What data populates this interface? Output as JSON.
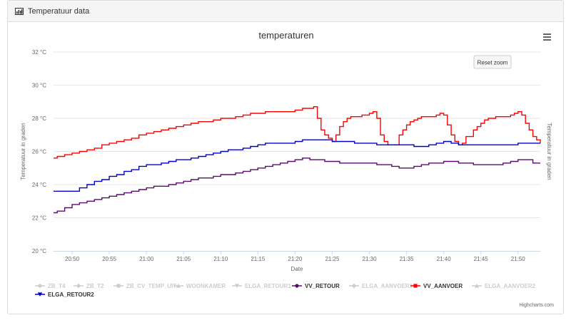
{
  "panel": {
    "title": "Temperatuur data",
    "icon": "bar-chart-icon"
  },
  "ui": {
    "reset_zoom": "Reset zoom",
    "credits": "Highcharts.com",
    "menu_icon": "hamburger-menu-icon"
  },
  "chart_data": {
    "type": "line",
    "title": "temperaturen",
    "xlabel": "Date",
    "ylabel": "Temperatuur in graden",
    "ylabel_right": "Temperatuur in graden",
    "y_ticks": [
      "20 °C",
      "22 °C",
      "24 °C",
      "26 °C",
      "28 °C",
      "30 °C",
      "32 °C"
    ],
    "y_tick_values": [
      20,
      22,
      24,
      26,
      28,
      30,
      32
    ],
    "ylim": [
      20,
      32
    ],
    "x_ticks": [
      "20:50",
      "20:55",
      "21:00",
      "21:05",
      "21:10",
      "21:15",
      "21:20",
      "21:25",
      "21:30",
      "21:35",
      "21:40",
      "21:45",
      "21:50"
    ],
    "x_tick_minutes": [
      50,
      55,
      60,
      65,
      70,
      75,
      80,
      85,
      90,
      95,
      100,
      105,
      110
    ],
    "xlim_minutes": [
      47.5,
      113
    ],
    "grid": true,
    "legend_position": "bottom-left",
    "legend": [
      {
        "name": "ZB_T4",
        "active": false,
        "symbol": "circle"
      },
      {
        "name": "ZB_T2",
        "active": false,
        "symbol": "diamond"
      },
      {
        "name": "ZB_CV_TEMP_UIT",
        "active": false,
        "symbol": "square"
      },
      {
        "name": "WOONKAMER",
        "active": false,
        "symbol": "triangle"
      },
      {
        "name": "ELGA_RETOUR1",
        "active": false,
        "symbol": "triangle-down"
      },
      {
        "name": "VV_RETOUR",
        "active": true,
        "symbol": "circle",
        "color": "#5b0a6e"
      },
      {
        "name": "ELGA_AANVOER1",
        "active": false,
        "symbol": "diamond"
      },
      {
        "name": "VV_AANVOER",
        "active": true,
        "symbol": "square",
        "color": "#ff0000"
      },
      {
        "name": "ELGA_AANVOER2",
        "active": false,
        "symbol": "triangle"
      },
      {
        "name": "ELGA_RETOUR2",
        "active": true,
        "symbol": "triangle-down",
        "color": "#0000cc"
      }
    ],
    "series": [
      {
        "name": "VV_AANVOER",
        "color": "#ff0000",
        "x": [
          47.5,
          48,
          49,
          50,
          51,
          52,
          53,
          54,
          55,
          56,
          57,
          58,
          59,
          60,
          61,
          62,
          63,
          64,
          65,
          66,
          67,
          68,
          69,
          70,
          71,
          72,
          73,
          74,
          75,
          76,
          77,
          78,
          79,
          80,
          81,
          82,
          82.5,
          83,
          83.5,
          84,
          84.5,
          85,
          85.5,
          86,
          86.5,
          87,
          87.5,
          88,
          89,
          90,
          90.5,
          91,
          91.5,
          92,
          92.5,
          93,
          94,
          94.5,
          95,
          95.5,
          96,
          96.5,
          97,
          98,
          99,
          99.5,
          100,
          100.5,
          101,
          101.5,
          102,
          102.5,
          103,
          104,
          104.5,
          105,
          105.5,
          106,
          107,
          108,
          109,
          109.5,
          110,
          110.5,
          111,
          111.5,
          112,
          112.5,
          113
        ],
        "y": [
          25.6,
          25.7,
          25.8,
          25.9,
          26.0,
          26.1,
          26.2,
          26.4,
          26.5,
          26.6,
          26.7,
          26.8,
          27.0,
          27.1,
          27.2,
          27.3,
          27.4,
          27.5,
          27.6,
          27.7,
          27.8,
          27.8,
          27.9,
          28.0,
          28.0,
          28.1,
          28.2,
          28.3,
          28.3,
          28.4,
          28.4,
          28.4,
          28.4,
          28.5,
          28.6,
          28.6,
          28.7,
          28.0,
          27.3,
          27.0,
          26.8,
          26.6,
          27.0,
          27.5,
          27.8,
          28.0,
          28.1,
          28.1,
          28.2,
          28.3,
          28.4,
          28.0,
          27.0,
          26.6,
          26.4,
          26.4,
          27.0,
          27.3,
          27.6,
          27.8,
          27.9,
          28.0,
          28.1,
          28.1,
          28.2,
          28.3,
          28.2,
          27.6,
          27.0,
          26.6,
          26.4,
          26.5,
          26.9,
          27.3,
          27.5,
          27.7,
          27.9,
          28.0,
          28.1,
          28.1,
          28.2,
          28.3,
          28.4,
          28.2,
          27.7,
          27.3,
          26.9,
          26.7,
          26.5
        ]
      },
      {
        "name": "ELGA_RETOUR2",
        "color": "#0000cc",
        "x": [
          47.5,
          50,
          51,
          52,
          53,
          54,
          55,
          56,
          57,
          58,
          59,
          60,
          61,
          62,
          63,
          64,
          65,
          66,
          67,
          68,
          69,
          70,
          71,
          72,
          73,
          74,
          75,
          76,
          77,
          78,
          79,
          80,
          81,
          82,
          83,
          84,
          85,
          86,
          87,
          88,
          89,
          90,
          91,
          92,
          93,
          94,
          95,
          96,
          97,
          98,
          99,
          100,
          101,
          102,
          103,
          104,
          105,
          106,
          107,
          108,
          109,
          110,
          111,
          112,
          113
        ],
        "y": [
          23.6,
          23.6,
          23.8,
          24.0,
          24.2,
          24.3,
          24.5,
          24.6,
          24.8,
          24.9,
          25.1,
          25.2,
          25.2,
          25.3,
          25.4,
          25.5,
          25.5,
          25.6,
          25.7,
          25.8,
          25.9,
          26.0,
          26.1,
          26.1,
          26.2,
          26.3,
          26.4,
          26.5,
          26.5,
          26.5,
          26.5,
          26.6,
          26.7,
          26.7,
          26.7,
          26.7,
          26.6,
          26.6,
          26.6,
          26.5,
          26.5,
          26.5,
          26.4,
          26.4,
          26.4,
          26.4,
          26.4,
          26.3,
          26.3,
          26.4,
          26.5,
          26.6,
          26.5,
          26.4,
          26.4,
          26.4,
          26.4,
          26.4,
          26.4,
          26.4,
          26.4,
          26.5,
          26.5,
          26.5,
          26.5
        ]
      },
      {
        "name": "VV_RETOUR",
        "color": "#5b0a6e",
        "x": [
          47.5,
          48,
          49,
          50,
          51,
          52,
          53,
          54,
          55,
          56,
          57,
          58,
          59,
          60,
          61,
          62,
          63,
          64,
          65,
          66,
          67,
          68,
          69,
          70,
          71,
          72,
          73,
          74,
          75,
          76,
          77,
          78,
          79,
          80,
          81,
          82,
          83,
          84,
          85,
          86,
          87,
          88,
          89,
          90,
          91,
          92,
          93,
          94,
          95,
          96,
          97,
          98,
          99,
          100,
          101,
          102,
          103,
          104,
          105,
          106,
          107,
          108,
          109,
          110,
          111,
          112,
          113
        ],
        "y": [
          22.3,
          22.4,
          22.6,
          22.8,
          22.9,
          23.0,
          23.1,
          23.2,
          23.3,
          23.4,
          23.5,
          23.6,
          23.7,
          23.8,
          23.9,
          23.9,
          24.0,
          24.1,
          24.2,
          24.3,
          24.4,
          24.4,
          24.5,
          24.6,
          24.6,
          24.7,
          24.8,
          24.9,
          25.0,
          25.1,
          25.2,
          25.3,
          25.4,
          25.5,
          25.6,
          25.5,
          25.5,
          25.4,
          25.4,
          25.3,
          25.3,
          25.3,
          25.3,
          25.3,
          25.2,
          25.2,
          25.1,
          25.0,
          25.0,
          25.1,
          25.2,
          25.3,
          25.3,
          25.4,
          25.4,
          25.3,
          25.3,
          25.2,
          25.2,
          25.2,
          25.2,
          25.3,
          25.4,
          25.5,
          25.5,
          25.3,
          25.3
        ]
      }
    ]
  }
}
